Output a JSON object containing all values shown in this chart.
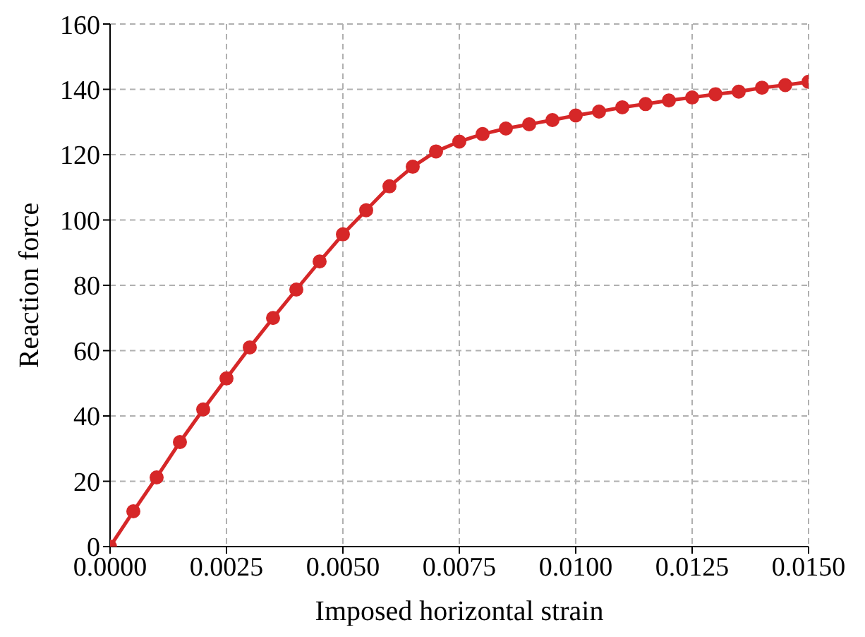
{
  "chart_data": {
    "type": "line",
    "xlabel": "Imposed horizontal strain",
    "ylabel": "Reaction force",
    "x": [
      0,
      0.0005,
      0.001,
      0.0015,
      0.002,
      0.0025,
      0.003,
      0.0035,
      0.004,
      0.0045,
      0.005,
      0.0055,
      0.006,
      0.0065,
      0.007,
      0.0075,
      0.008,
      0.0085,
      0.009,
      0.0095,
      0.01,
      0.0105,
      0.011,
      0.0115,
      0.012,
      0.0125,
      0.013,
      0.0135,
      0.014,
      0.0145,
      0.015
    ],
    "series": [
      {
        "color": "#d62728",
        "values": [
          0,
          10.8,
          21.2,
          32,
          42,
          51.5,
          61,
          70,
          78.7,
          87.3,
          95.6,
          103,
          110.3,
          116.3,
          121,
          124,
          126.3,
          128,
          129.3,
          130.6,
          132,
          133.2,
          134.5,
          135.5,
          136.6,
          137.5,
          138.5,
          139.3,
          140.5,
          141.3,
          142.3
        ]
      }
    ],
    "xlim": [
      0,
      0.015
    ],
    "xticks": [
      {
        "value": 0,
        "label": "0.0000"
      },
      {
        "value": 0.0025,
        "label": "0.0025"
      },
      {
        "value": 0.005,
        "label": "0.0050"
      },
      {
        "value": 0.0075,
        "label": "0.0075"
      },
      {
        "value": 0.01,
        "label": "0.0100"
      },
      {
        "value": 0.0125,
        "label": "0.0125"
      },
      {
        "value": 0.015,
        "label": "0.0150"
      }
    ],
    "ylim": [
      0,
      160
    ],
    "yticks": [
      0,
      20,
      40,
      60,
      80,
      100,
      120,
      140,
      160
    ],
    "grid": true,
    "marker": "circle",
    "line_style": "solid"
  }
}
